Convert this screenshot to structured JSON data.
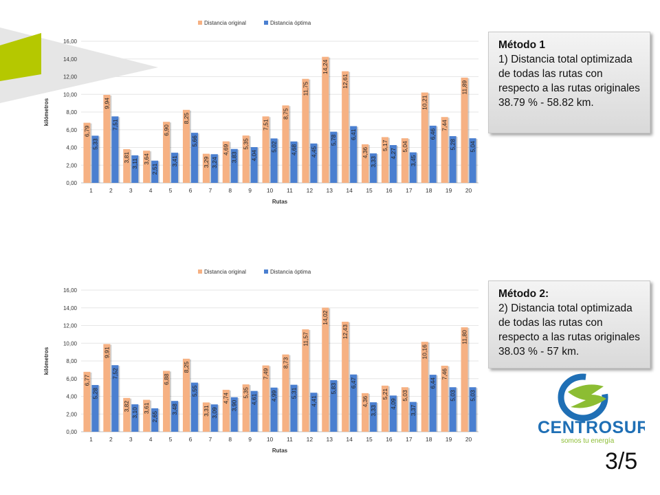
{
  "colors": {
    "original": "#f6b183",
    "optimal": "#4a7fd0",
    "deco_green": "#b5c800",
    "deco_gray": "#e3e3e3",
    "logo_blue": "#1f6fb5",
    "logo_green": "#8cbd33"
  },
  "notes": [
    {
      "title": "Método 1",
      "body": "1) Distancia total optimizada de todas las rutas con respecto a las rutas originales 38.79 % - 58.82 km."
    },
    {
      "title": "Método 2:",
      "body": "2) Distancia total optimizada de todas las rutas con respecto a las rutas originales 38.03 % - 57 km."
    }
  ],
  "logo": {
    "name": "CENTROSUR",
    "tagline": "somos tu energía"
  },
  "page_number": "3/5",
  "chart_data": [
    {
      "type": "bar",
      "xlabel": "Rutas",
      "ylabel": "kilómetros",
      "ylim": [
        0,
        16
      ],
      "ytick_labels": [
        "0,00",
        "2,00",
        "4,00",
        "6,00",
        "8,00",
        "10,00",
        "12,00",
        "14,00",
        "16,00"
      ],
      "categories": [
        "1",
        "2",
        "3",
        "4",
        "5",
        "6",
        "7",
        "8",
        "9",
        "10",
        "11",
        "12",
        "13",
        "14",
        "15",
        "16",
        "17",
        "18",
        "19",
        "20"
      ],
      "legend_position": "top",
      "series": [
        {
          "name": "Distancia original",
          "values": [
            6.79,
            9.94,
            3.81,
            3.64,
            6.9,
            8.25,
            3.29,
            4.69,
            5.35,
            7.51,
            8.75,
            11.75,
            14.24,
            12.61,
            4.36,
            5.17,
            5.04,
            10.21,
            7.44,
            11.89
          ],
          "labels": [
            "6,79",
            "9,94",
            "3,81",
            "3,64",
            "6,90",
            "8,25",
            "3,29",
            "4,69",
            "5,35",
            "7,51",
            "8,75",
            "11,75",
            "14,24",
            "12,61",
            "4,36",
            "5,17",
            "5,04",
            "10,21",
            "7,44",
            "11,89"
          ]
        },
        {
          "name": "Distancia óptima",
          "values": [
            5.33,
            7.51,
            3.11,
            2.51,
            3.41,
            5.66,
            3.24,
            3.83,
            4.04,
            5.02,
            4.68,
            4.45,
            5.78,
            6.41,
            3.33,
            4.27,
            3.45,
            6.46,
            5.28,
            5.04
          ],
          "labels": [
            "5,33",
            "7,51",
            "3,11",
            "2,51",
            "3,41",
            "5,66",
            "3,24",
            "3,83",
            "4,04",
            "5,02",
            "4,68",
            "4,45",
            "5,78",
            "6,41",
            "3,33",
            "4,27",
            "3,45",
            "6,46",
            "5,28",
            "5,04"
          ]
        }
      ]
    },
    {
      "type": "bar",
      "xlabel": "Rutas",
      "ylabel": "kilómetros",
      "ylim": [
        0,
        16
      ],
      "ytick_labels": [
        "0,00",
        "2,00",
        "4,00",
        "6,00",
        "8,00",
        "10,00",
        "12,00",
        "14,00",
        "16,00"
      ],
      "categories": [
        "1",
        "2",
        "3",
        "4",
        "5",
        "6",
        "7",
        "8",
        "9",
        "10",
        "11",
        "12",
        "13",
        "14",
        "15",
        "16",
        "17",
        "18",
        "19",
        "20"
      ],
      "legend_position": "top",
      "series": [
        {
          "name": "Distancia original",
          "values": [
            6.77,
            9.91,
            3.82,
            3.61,
            6.88,
            8.25,
            3.31,
            4.74,
            5.35,
            7.49,
            8.73,
            11.57,
            14.02,
            12.43,
            4.36,
            5.21,
            5.03,
            10.16,
            7.46,
            11.8
          ],
          "labels": [
            "6,77",
            "9,91",
            "3,82",
            "3,61",
            "6,88",
            "8,25",
            "3,31",
            "4,74",
            "5,35",
            "7,49",
            "8,73",
            "11,57",
            "14,02",
            "12,43",
            "4,36",
            "5,21",
            "5,03",
            "10,16",
            "7,46",
            "11,80"
          ]
        },
        {
          "name": "Distancia óptima",
          "values": [
            5.28,
            7.52,
            3.1,
            2.65,
            3.48,
            5.55,
            3.09,
            3.9,
            4.61,
            4.99,
            5.31,
            4.41,
            5.83,
            6.47,
            3.33,
            4.09,
            3.37,
            6.44,
            5.03,
            5.03
          ],
          "labels": [
            "5,28",
            "7,52",
            "3,10",
            "2,65",
            "3,48",
            "5,55",
            "3,09",
            "3,90",
            "4,61",
            "4,99",
            "5,31",
            "4,41",
            "5,83",
            "6,47",
            "3,33",
            "4,09",
            "3,37",
            "6,44",
            "5,03",
            "5,03"
          ]
        }
      ]
    }
  ]
}
